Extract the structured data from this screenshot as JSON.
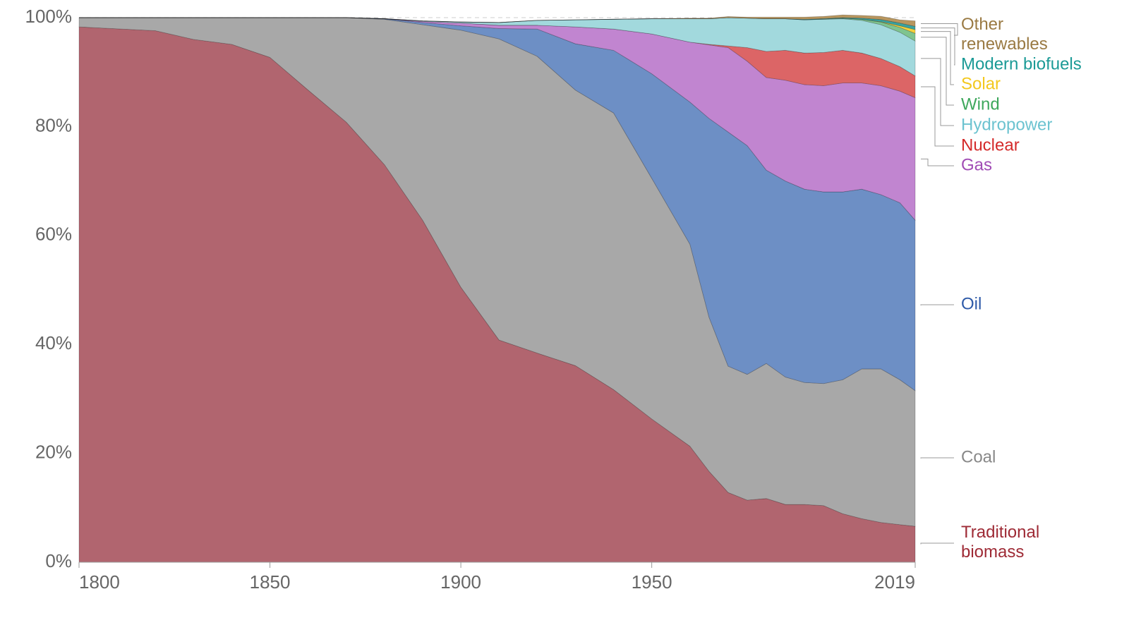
{
  "chart_data": {
    "type": "stacked-area",
    "x": [
      1800,
      1820,
      1830,
      1840,
      1850,
      1860,
      1870,
      1880,
      1890,
      1900,
      1910,
      1920,
      1930,
      1940,
      1950,
      1960,
      1965,
      1970,
      1975,
      1980,
      1985,
      1990,
      1995,
      2000,
      2005,
      2010,
      2015,
      2019
    ],
    "xlim": [
      1800,
      2019
    ],
    "xticks": [
      1800,
      1850,
      1900,
      1950,
      2019
    ],
    "ylim": [
      0,
      100
    ],
    "yticks": [
      {
        "value": 0,
        "label": "0%"
      },
      {
        "value": 20,
        "label": "20%"
      },
      {
        "value": 40,
        "label": "40%"
      },
      {
        "value": 60,
        "label": "60%"
      },
      {
        "value": 80,
        "label": "80%"
      },
      {
        "value": 100,
        "label": "100%"
      }
    ],
    "grid": true,
    "series": [
      {
        "name": "Traditional biomass",
        "color": "#b1656f",
        "label_color": "#9e2a35",
        "values": [
          98.3,
          97.6,
          96,
          95.1,
          92.7,
          86.7,
          80.8,
          73,
          62.8,
          50.5,
          40.8,
          38.4,
          36.1,
          31.7,
          26.3,
          21.3,
          16.7,
          12.8,
          11.4,
          11.7,
          10.6,
          10.6,
          10.4,
          8.9,
          8,
          7.3,
          6.9,
          6.6
        ]
      },
      {
        "name": "Coal",
        "color": "#a8a8a8",
        "label_color": "#888888",
        "values": [
          1.7,
          2.4,
          4,
          4.9,
          7.3,
          13.3,
          19.2,
          26.7,
          35.9,
          47.2,
          55.3,
          54.5,
          50.6,
          50.8,
          44.2,
          37.1,
          28.3,
          23.2,
          23.1,
          24.8,
          23.4,
          22.4,
          22.4,
          24.6,
          27.5,
          28.2,
          26.6,
          24.9
        ]
      },
      {
        "name": "Oil",
        "color": "#6d8fc5",
        "label_color": "#2e5aa8",
        "values": [
          0,
          0,
          0,
          0,
          0,
          0,
          0,
          0.1,
          0.4,
          0.8,
          1.9,
          5,
          8.5,
          11.5,
          19.2,
          26.1,
          36.5,
          43,
          42,
          35.5,
          36,
          35.5,
          35.2,
          34.5,
          33,
          32,
          32.5,
          31.3
        ]
      },
      {
        "name": "Gas",
        "color": "#c185d0",
        "label_color": "#a14cb5",
        "values": [
          0,
          0,
          0,
          0,
          0,
          0,
          0,
          0,
          0.2,
          0.5,
          0.6,
          0.7,
          3.1,
          3.9,
          7.3,
          11,
          13.5,
          15.5,
          15.5,
          17,
          18.5,
          19.2,
          19.5,
          20,
          19.5,
          20,
          20.5,
          22.5
        ]
      },
      {
        "name": "Nuclear",
        "color": "#dc6566",
        "label_color": "#d42a2a",
        "values": [
          0,
          0,
          0,
          0,
          0,
          0,
          0,
          0,
          0,
          0,
          0,
          0,
          0,
          0,
          0,
          0,
          0.1,
          0.3,
          2.5,
          4.8,
          5.5,
          5.8,
          6.1,
          6,
          5.5,
          5,
          4.5,
          4
        ]
      },
      {
        "name": "Hydropower",
        "color": "#a2d9dd",
        "label_color": "#6cc3d0",
        "values": [
          0,
          0,
          0,
          0,
          0,
          0,
          0,
          0,
          0.1,
          0.2,
          0.5,
          0.9,
          1.3,
          1.8,
          2.8,
          4.3,
          4.7,
          5.2,
          5.4,
          6,
          5.8,
          6.1,
          6.1,
          5.8,
          6,
          6.2,
          6.3,
          6.4
        ]
      },
      {
        "name": "Wind",
        "color": "#7fc48f",
        "label_color": "#3ea85c",
        "values": [
          0,
          0,
          0,
          0,
          0,
          0,
          0,
          0,
          0,
          0,
          0,
          0,
          0,
          0,
          0,
          0,
          0,
          0,
          0,
          0,
          0,
          0,
          0.02,
          0.1,
          0.2,
          0.5,
          0.9,
          1.4
        ]
      },
      {
        "name": "Solar",
        "color": "#f4d13b",
        "label_color": "#f3c81d",
        "values": [
          0,
          0,
          0,
          0,
          0,
          0,
          0,
          0,
          0,
          0,
          0,
          0,
          0,
          0,
          0,
          0,
          0,
          0,
          0,
          0,
          0,
          0,
          0,
          0,
          0,
          0.05,
          0.3,
          0.7
        ]
      },
      {
        "name": "Modern biofuels",
        "color": "#3aa3a0",
        "label_color": "#1b9a96",
        "values": [
          0,
          0,
          0,
          0,
          0,
          0,
          0,
          0,
          0,
          0,
          0,
          0,
          0,
          0,
          0,
          0,
          0,
          0,
          0,
          0,
          0,
          0.1,
          0.1,
          0.1,
          0.2,
          0.4,
          0.5,
          0.6
        ]
      },
      {
        "name": "Other renewables",
        "color": "#b8965e",
        "label_color": "#9a7a43",
        "values": [
          0,
          0,
          0,
          0,
          0,
          0,
          0,
          0,
          0,
          0,
          0,
          0,
          0,
          0,
          0,
          0.1,
          0.1,
          0.2,
          0.2,
          0.3,
          0.3,
          0.4,
          0.4,
          0.5,
          0.5,
          0.6,
          0.6,
          1.0
        ]
      }
    ]
  }
}
